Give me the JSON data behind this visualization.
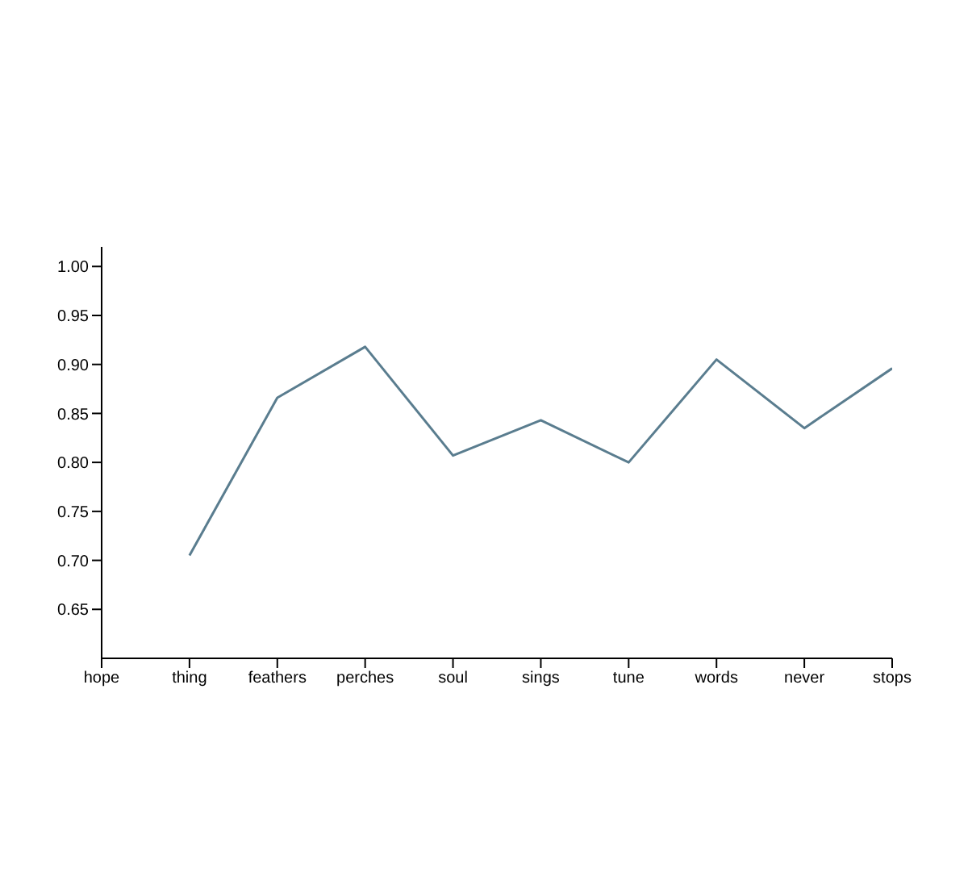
{
  "chart_data": {
    "type": "line",
    "categories": [
      "hope",
      "thing",
      "feathers",
      "perches",
      "soul",
      "sings",
      "tune",
      "words",
      "never",
      "stops"
    ],
    "series": [
      {
        "color": "#5a7d8f",
        "values": [
          null,
          0.705,
          0.866,
          0.918,
          0.807,
          0.843,
          0.8,
          0.905,
          0.835,
          0.896
        ]
      }
    ],
    "ylim": [
      0.6,
      1.02
    ],
    "yticks": [
      {
        "value": 0.65,
        "label": "0.65"
      },
      {
        "value": 0.7,
        "label": "0.70"
      },
      {
        "value": 0.75,
        "label": "0.75"
      },
      {
        "value": 0.8,
        "label": "0.80"
      },
      {
        "value": 0.85,
        "label": "0.85"
      },
      {
        "value": 0.9,
        "label": "0.90"
      },
      {
        "value": 0.95,
        "label": "0.95"
      },
      {
        "value": 1,
        "label": "1.00"
      }
    ],
    "grid": false,
    "legend": false,
    "marker": "none"
  }
}
